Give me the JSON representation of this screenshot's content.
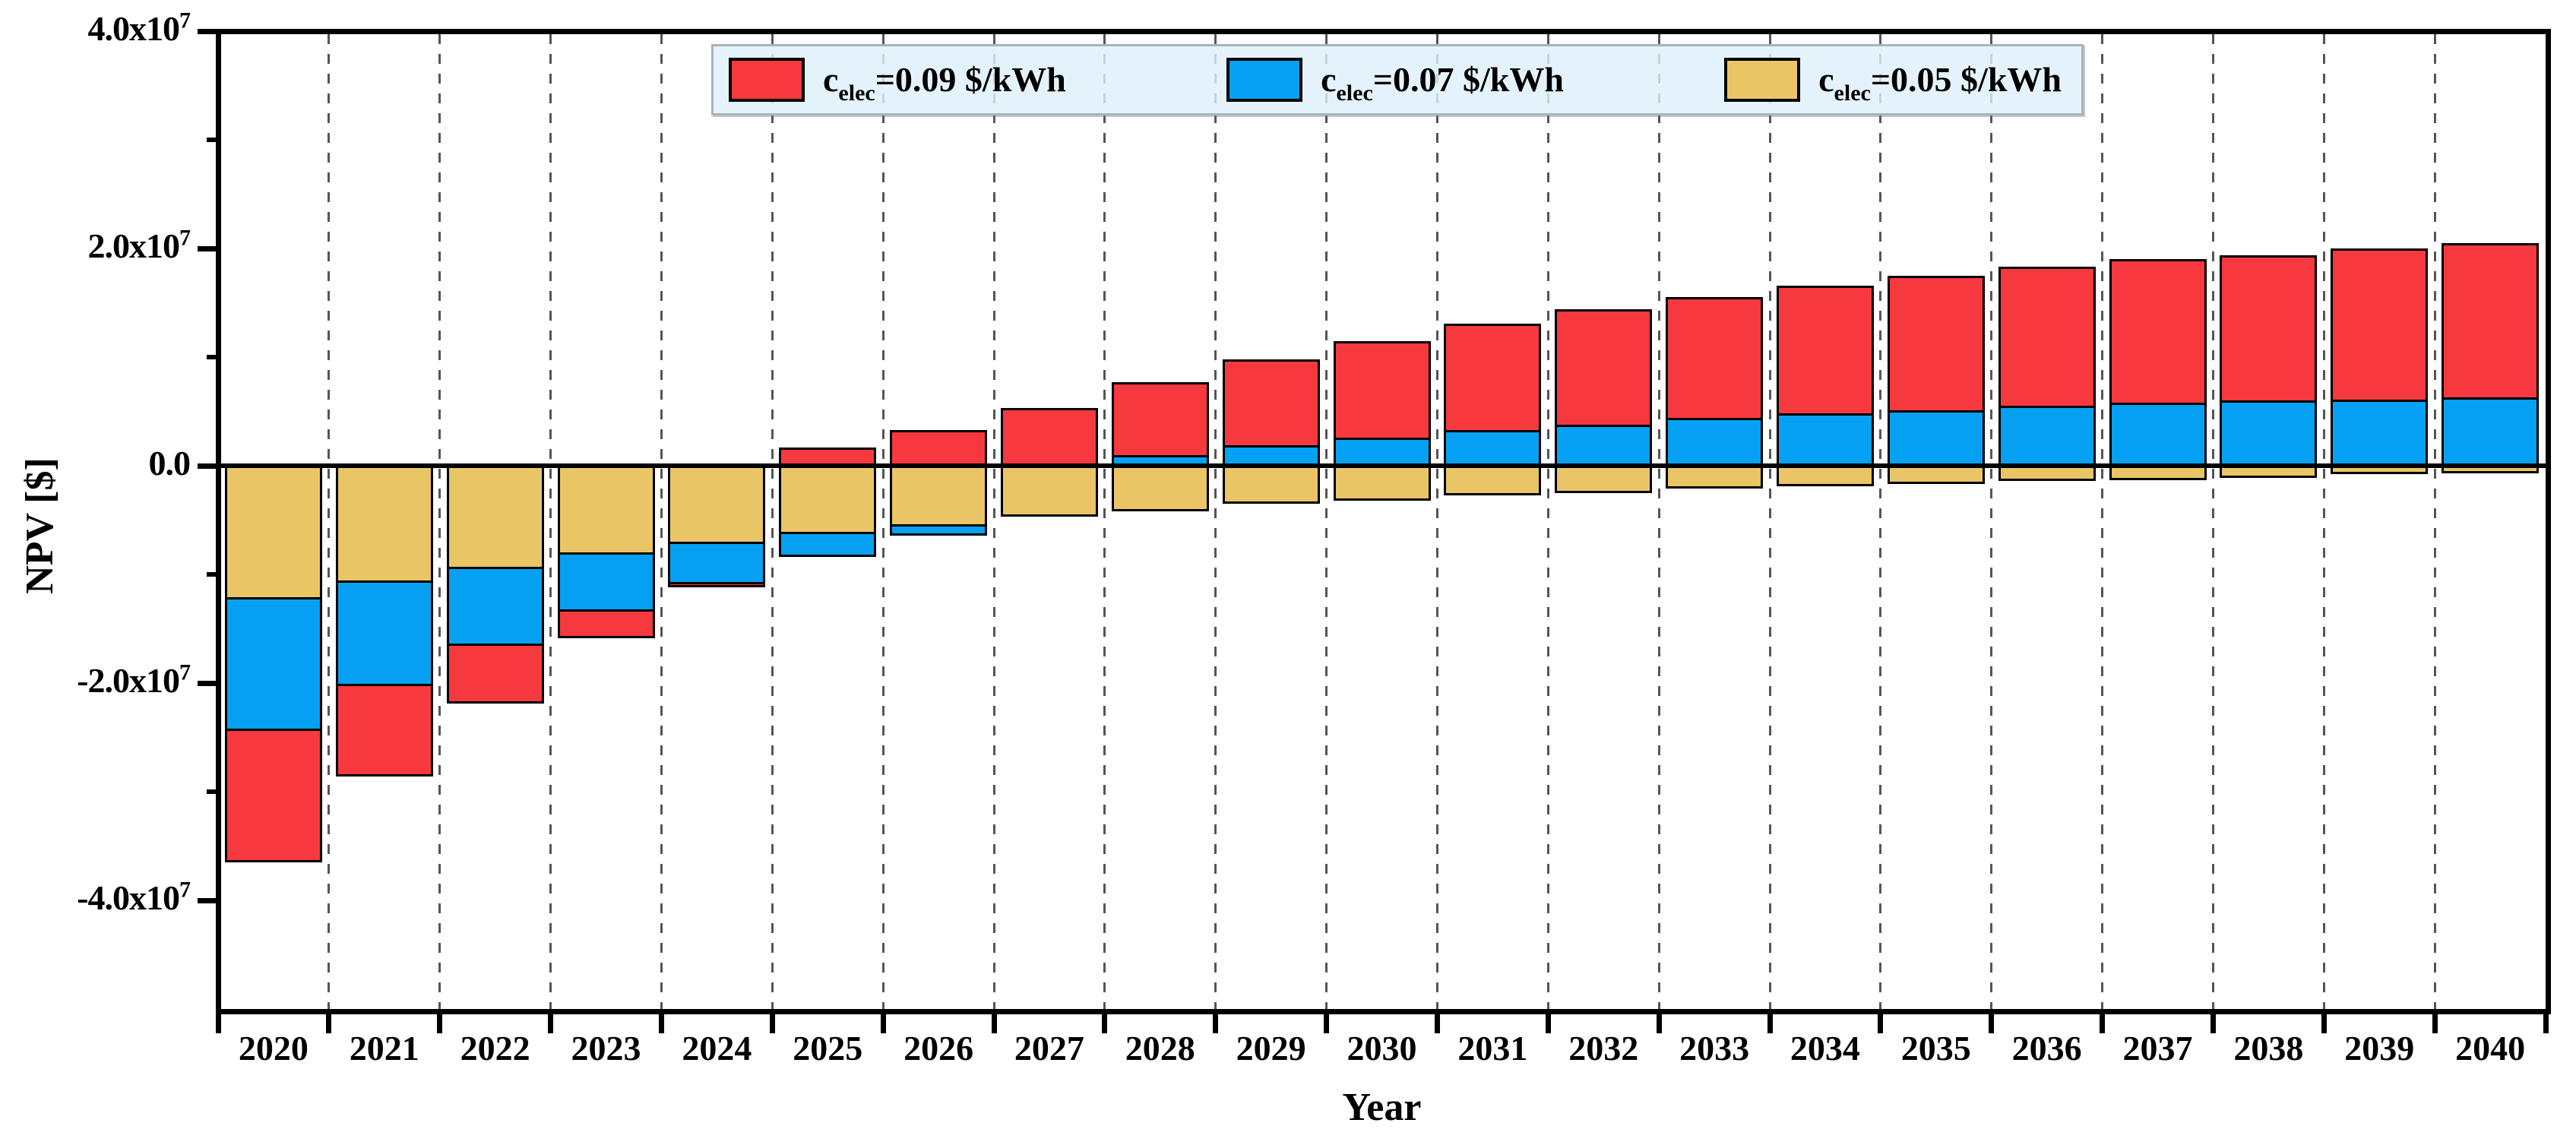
{
  "chart_data": {
    "type": "bar",
    "title": "",
    "xlabel": "Year",
    "ylabel": "NPV [$]",
    "categories": [
      2020,
      2021,
      2022,
      2023,
      2024,
      2025,
      2026,
      2027,
      2028,
      2029,
      2030,
      2031,
      2032,
      2033,
      2034,
      2035,
      2036,
      2037,
      2038,
      2039,
      2040
    ],
    "series": [
      {
        "id": "c09",
        "name": "c_elec=0.09 $/kWh",
        "color": "#f5393f",
        "values": [
          -36500000,
          -28600000,
          -21900000,
          -15900000,
          -11200000,
          1700000,
          3300000,
          5300000,
          7700000,
          9800000,
          11500000,
          13100000,
          14400000,
          15500000,
          16600000,
          17500000,
          18300000,
          19000000,
          19400000,
          20000000,
          20500000
        ]
      },
      {
        "id": "c07",
        "name": "c_elec=0.07 $/kWh",
        "color": "#06a1f2",
        "values": [
          -24400000,
          -20300000,
          -16600000,
          -13400000,
          -10900000,
          -8400000,
          -6400000,
          -2600000,
          1000000,
          1900000,
          2600000,
          3300000,
          3800000,
          4400000,
          4800000,
          5100000,
          5500000,
          5800000,
          6000000,
          6100000,
          6300000
        ]
      },
      {
        "id": "c05",
        "name": "c_elec=0.05 $/kWh",
        "color": "#eac566",
        "values": [
          -12300000,
          -10800000,
          -9500000,
          -8200000,
          -7200000,
          -6300000,
          -5600000,
          -4700000,
          -4200000,
          -3500000,
          -3200000,
          -2700000,
          -2500000,
          -2100000,
          -1900000,
          -1700000,
          -1400000,
          -1300000,
          -1100000,
          -800000,
          -700000
        ]
      }
    ],
    "draw_order_note": "bars overlap at same x; drawn in series order c09, c07, c05 (later series on top)",
    "bar_style": "overlapped",
    "ylim": [
      -50000000,
      40000000
    ],
    "grid": "vertical dashed gridlines at year boundaries",
    "legend_position": "top center inside plot"
  },
  "y_axis": {
    "label": "NPV [$]",
    "major_ticks": [
      {
        "value": 40000000,
        "main": "4.0x10",
        "sup": "7"
      },
      {
        "value": 20000000,
        "main": "2.0x10",
        "sup": "7"
      },
      {
        "value": 0,
        "main": "0.0",
        "sup": ""
      },
      {
        "value": -20000000,
        "main": "-2.0x10",
        "sup": "7"
      },
      {
        "value": -40000000,
        "main": "-4.0x10",
        "sup": "7"
      }
    ],
    "minor_tick_values": [
      30000000,
      10000000,
      -10000000,
      -30000000
    ]
  },
  "x_axis": {
    "label": "Year",
    "years": [
      "2020",
      "2021",
      "2022",
      "2023",
      "2024",
      "2025",
      "2026",
      "2027",
      "2028",
      "2029",
      "2030",
      "2031",
      "2032",
      "2033",
      "2034",
      "2035",
      "2036",
      "2037",
      "2038",
      "2039",
      "2040"
    ]
  },
  "legend": {
    "entries": [
      {
        "prefix": "c",
        "subscript": "elec",
        "rest": "=0.09 $/kWh",
        "color": "#f5393f"
      },
      {
        "prefix": "c",
        "subscript": "elec",
        "rest": "=0.07 $/kWh",
        "color": "#06a1f2"
      },
      {
        "prefix": "c",
        "subscript": "elec",
        "rest": "=0.05 $/kWh",
        "color": "#eac566"
      }
    ]
  },
  "colors": {
    "red": "#f5393f",
    "blue": "#06a1f2",
    "tan": "#eac566",
    "gridline": "#555555",
    "axis": "#000000",
    "legend_bg": "#def0fa",
    "legend_border": "#a9b3ba"
  }
}
